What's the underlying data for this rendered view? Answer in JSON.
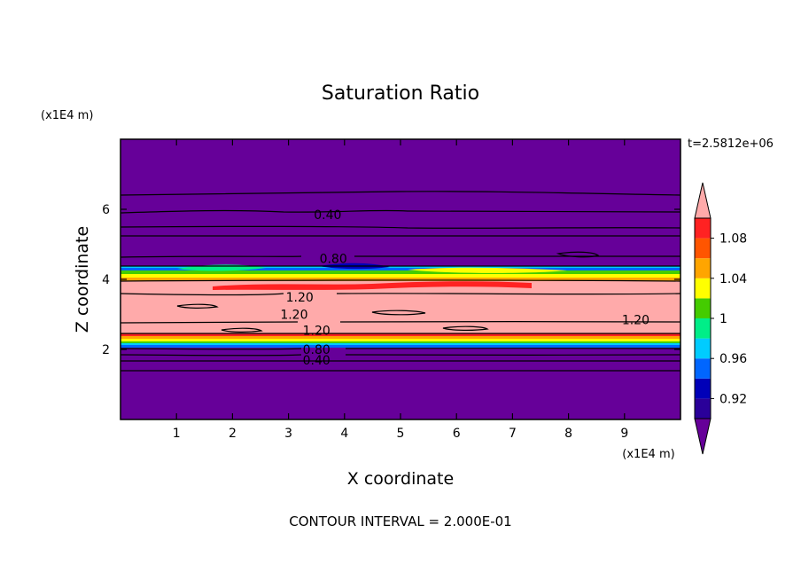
{
  "chart_data": {
    "type": "contour",
    "title": "Saturation Ratio",
    "xlabel": "X coordinate",
    "ylabel": "Z coordinate",
    "x_unit": "(x1E4 m)",
    "y_unit": "(x1E4 m)",
    "time_label": "t=2.5812e+06",
    "footer": "CONTOUR INTERVAL = 2.000E-01",
    "xlim": [
      0,
      10
    ],
    "ylim": [
      0,
      8
    ],
    "x_ticks": [
      1,
      2,
      3,
      4,
      5,
      6,
      7,
      8,
      9
    ],
    "y_ticks": [
      2,
      4,
      6
    ],
    "contour_labels": [
      {
        "text": "0.40",
        "x": 3.7,
        "z": 5.85
      },
      {
        "text": "0.80",
        "x": 3.8,
        "z": 4.6
      },
      {
        "text": "1.20",
        "x": 3.2,
        "z": 3.5
      },
      {
        "text": "1.20",
        "x": 3.1,
        "z": 3.0
      },
      {
        "text": "1.20",
        "x": 3.5,
        "z": 2.55
      },
      {
        "text": "1.20",
        "x": 9.2,
        "z": 2.85
      },
      {
        "text": "0.80",
        "x": 3.5,
        "z": 2.0
      },
      {
        "text": "0.40",
        "x": 3.5,
        "z": 1.7
      }
    ],
    "colorbar": {
      "levels": [
        0.9,
        0.92,
        0.94,
        0.96,
        0.98,
        1.0,
        1.02,
        1.04,
        1.06,
        1.08,
        1.1
      ],
      "colors": [
        "#660099",
        "#2a0099",
        "#0000b8",
        "#0066ff",
        "#00ccff",
        "#00ee88",
        "#44cc00",
        "#ffff00",
        "#ffa500",
        "#ff5500",
        "#ff2222",
        "#ffaaaa"
      ],
      "tick_labels": [
        {
          "value": 0.92,
          "text": "0.92"
        },
        {
          "value": 0.96,
          "text": "0.96"
        },
        {
          "value": 1.0,
          "text": "1"
        },
        {
          "value": 1.04,
          "text": "1.04"
        },
        {
          "value": 1.08,
          "text": "1.08"
        }
      ]
    }
  }
}
